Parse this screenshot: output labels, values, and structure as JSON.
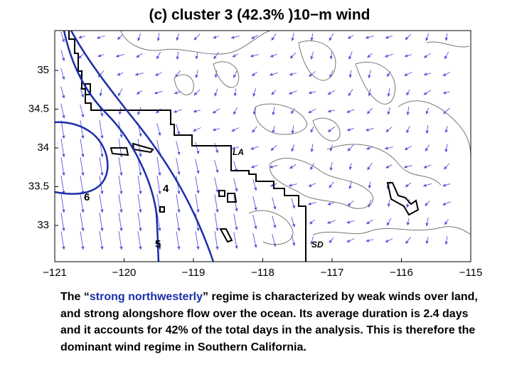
{
  "title": "(c) cluster 3 (42.3% )10−m wind",
  "axes": {
    "xticks": [
      "−121",
      "−120",
      "−119",
      "−118",
      "−117",
      "−116",
      "−115"
    ],
    "yticks": [
      "35",
      "34.5",
      "34",
      "33.5",
      "33"
    ]
  },
  "map_labels": {
    "contours": [
      "6",
      "5",
      "4"
    ],
    "places": [
      "LA",
      "SD"
    ]
  },
  "caption": {
    "before": "The “",
    "highlight": "strong northwesterly",
    "after": "” regime is characterized by weak winds over land, and strong alongshore flow over the ocean. Its average duration is 2.4 days and it accounts for 42% of the total days in the analysis.  This is therefore the dominant wind regime in Southern California."
  }
}
